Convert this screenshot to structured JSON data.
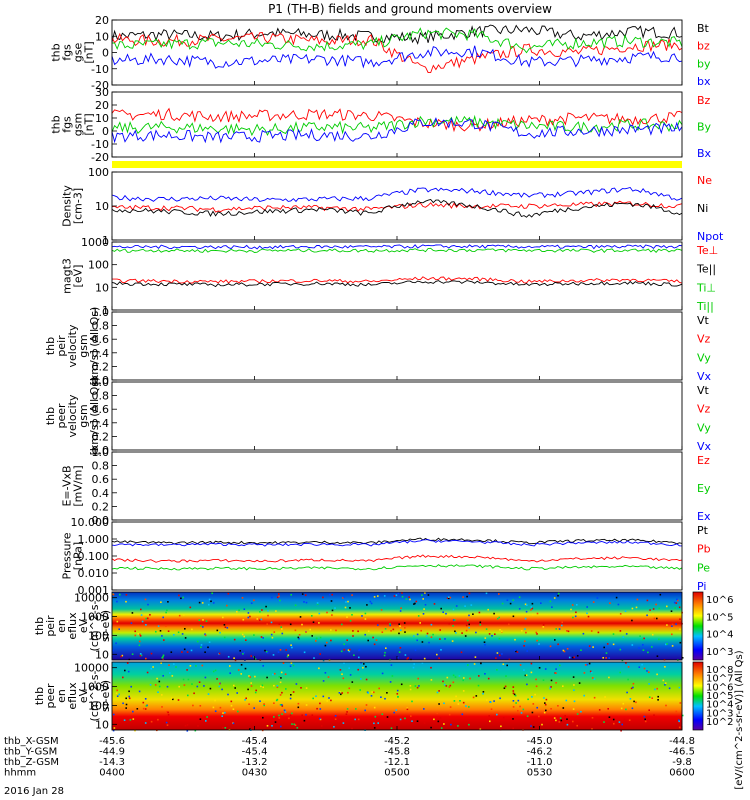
{
  "title": "P1 (TH-B) fields and ground moments overview",
  "date_label": "2016 Jan 28",
  "ephemeris": {
    "labels": [
      "thb_X-GSM",
      "thb_Y-GSM",
      "thb_Z-GSM",
      "hhmm"
    ],
    "rows": [
      [
        "-45.6",
        "-45.4",
        "-45.2",
        "-45.0",
        "-44.8"
      ],
      [
        "-44.9",
        "-45.4",
        "-45.8",
        "-46.2",
        "-46.5"
      ],
      [
        "-14.3",
        "-13.2",
        "-12.1",
        "-11.0",
        "-9.8"
      ],
      [
        "0400",
        "0430",
        "0500",
        "0530",
        "0600"
      ]
    ]
  },
  "colorbar_label": "[eV/(cm^2-s-sr-eV)] (All Qs)",
  "colors": {
    "black": "#000000",
    "red": "#ff0000",
    "green": "#00cc00",
    "blue": "#0000ff",
    "flag": "#ffff00"
  },
  "chart_data": [
    {
      "type": "line",
      "ylabel": [
        "thb",
        "fgs",
        "gse",
        "[nT]"
      ],
      "ylim": [
        -20,
        20
      ],
      "yticks": [
        "20",
        "10",
        "0",
        "-10",
        "-20"
      ],
      "legend": [
        {
          "text": "Bt",
          "color": "#000000"
        },
        {
          "text": "bz",
          "color": "#ff0000"
        },
        {
          "text": "by",
          "color": "#00cc00"
        },
        {
          "text": "bx",
          "color": "#0000ff"
        }
      ],
      "series": [
        {
          "color": "#000000",
          "values": [
            10,
            11,
            10,
            12,
            11,
            10,
            9,
            13,
            14,
            10,
            13,
            12
          ]
        },
        {
          "color": "#ff0000",
          "values": [
            8,
            7,
            8,
            9,
            7,
            8,
            -10,
            -4,
            2,
            0,
            4,
            5
          ]
        },
        {
          "color": "#00cc00",
          "values": [
            4,
            5,
            6,
            5,
            4,
            5,
            12,
            11,
            3,
            6,
            7,
            6
          ]
        },
        {
          "color": "#0000ff",
          "values": [
            -5,
            -4,
            -6,
            -5,
            -4,
            -6,
            0,
            1,
            -6,
            -5,
            -3,
            -2
          ]
        }
      ]
    },
    {
      "type": "line",
      "ylabel": [
        "thb",
        "fgs",
        "gsm",
        "[nT]"
      ],
      "ylim": [
        -20,
        30
      ],
      "yticks": [
        "30",
        "20",
        "10",
        "0",
        "-10",
        "-20"
      ],
      "legend": [
        {
          "text": "Bz",
          "color": "#ff0000"
        },
        {
          "text": "By",
          "color": "#00cc00"
        },
        {
          "text": "Bx",
          "color": "#0000ff"
        }
      ],
      "series": [
        {
          "color": "#ff0000",
          "values": [
            12,
            13,
            11,
            12,
            13,
            12,
            6,
            4,
            8,
            10,
            9,
            11
          ]
        },
        {
          "color": "#00cc00",
          "values": [
            2,
            3,
            2,
            1,
            3,
            2,
            8,
            7,
            4,
            3,
            5,
            4
          ]
        },
        {
          "color": "#0000ff",
          "values": [
            -4,
            -3,
            -5,
            -4,
            -3,
            -4,
            7,
            6,
            -2,
            0,
            1,
            2
          ]
        }
      ]
    },
    {
      "type": "line",
      "ylabel": [
        "Density",
        "[cm-3]"
      ],
      "scale": "log",
      "ylim": [
        1,
        100
      ],
      "yticks": [
        "100",
        "10",
        "1"
      ],
      "legend": [
        {
          "text": "Ne",
          "color": "#ff0000"
        },
        {
          "text": "Ni",
          "color": "#000000"
        },
        {
          "text": "Npot",
          "color": "#0000ff"
        }
      ],
      "series": [
        {
          "color": "#0000ff",
          "values": [
            18,
            16,
            17,
            15,
            16,
            17,
            30,
            28,
            20,
            24,
            32,
            15
          ]
        },
        {
          "color": "#ff0000",
          "values": [
            9,
            9,
            8,
            9,
            9,
            8,
            11,
            10,
            10,
            11,
            12,
            10
          ]
        },
        {
          "color": "#000000",
          "values": [
            8,
            7,
            6,
            7,
            8,
            6,
            14,
            10,
            5,
            9,
            12,
            6
          ]
        }
      ]
    },
    {
      "type": "line",
      "ylabel": [
        "magt3",
        "[eV]"
      ],
      "scale": "log",
      "ylim": [
        1,
        1000
      ],
      "yticks": [
        "1000",
        "100",
        "10",
        "1"
      ],
      "legend": [
        {
          "text": "Te⊥",
          "color": "#ff0000"
        },
        {
          "text": "Te||",
          "color": "#000000"
        },
        {
          "text": "Ti⊥",
          "color": "#00cc00"
        },
        {
          "text": "Ti||",
          "color": "#00cc00"
        }
      ],
      "series": [
        {
          "color": "#0000ff",
          "values": [
            600,
            620,
            610,
            600,
            620,
            610,
            650,
            640,
            620,
            610,
            630,
            620
          ]
        },
        {
          "color": "#00cc00",
          "values": [
            420,
            430,
            410,
            420,
            430,
            420,
            450,
            440,
            430,
            420,
            430,
            420
          ]
        },
        {
          "color": "#ff0000",
          "values": [
            20,
            19,
            18,
            19,
            20,
            18,
            25,
            24,
            18,
            20,
            22,
            18
          ]
        },
        {
          "color": "#000000",
          "values": [
            15,
            14,
            13,
            14,
            15,
            13,
            18,
            17,
            13,
            15,
            16,
            13
          ]
        }
      ]
    },
    {
      "type": "line",
      "ylabel": [
        "thb",
        "peir",
        "velocity",
        "gsm",
        "[km/s] (All Qs)"
      ],
      "ylim": [
        0,
        1
      ],
      "yticks": [
        "1.0",
        "0.8",
        "0.6",
        "0.4",
        "0.2",
        "0.0"
      ],
      "legend": [
        {
          "text": "Vt",
          "color": "#000000"
        },
        {
          "text": "Vz",
          "color": "#ff0000"
        },
        {
          "text": "Vy",
          "color": "#00cc00"
        },
        {
          "text": "Vx",
          "color": "#0000ff"
        }
      ],
      "series": []
    },
    {
      "type": "line",
      "ylabel": [
        "thb",
        "peer",
        "velocity",
        "gsm",
        "[km/s] (All Qs)"
      ],
      "ylim": [
        0,
        1
      ],
      "yticks": [
        "1.0",
        "0.8",
        "0.6",
        "0.4",
        "0.2",
        "0.0"
      ],
      "legend": [
        {
          "text": "Vt",
          "color": "#000000"
        },
        {
          "text": "Vz",
          "color": "#ff0000"
        },
        {
          "text": "Vy",
          "color": "#00cc00"
        },
        {
          "text": "Vx",
          "color": "#0000ff"
        }
      ],
      "series": []
    },
    {
      "type": "line",
      "ylabel": [
        "E=-VxB",
        "[mV/m]"
      ],
      "ylim": [
        0,
        1
      ],
      "yticks": [
        "1.0",
        "0.8",
        "0.6",
        "0.4",
        "0.2",
        "0.0"
      ],
      "legend": [
        {
          "text": "Ez",
          "color": "#ff0000"
        },
        {
          "text": "Ey",
          "color": "#00cc00"
        },
        {
          "text": "Ex",
          "color": "#0000ff"
        }
      ],
      "series": []
    },
    {
      "type": "line",
      "ylabel": [
        "Pressure",
        "[nPa]"
      ],
      "scale": "log",
      "ylim": [
        0.001,
        10
      ],
      "yticks": [
        "10.000",
        "1.000",
        "0.100",
        "0.010",
        "0.001"
      ],
      "legend": [
        {
          "text": "Pt",
          "color": "#000000"
        },
        {
          "text": "Pb",
          "color": "#ff0000"
        },
        {
          "text": "Pe",
          "color": "#00cc00"
        },
        {
          "text": "Pi",
          "color": "#0000ff"
        }
      ],
      "series": [
        {
          "color": "#000000",
          "values": [
            0.7,
            0.6,
            0.65,
            0.6,
            0.65,
            0.6,
            1.0,
            0.9,
            0.6,
            0.8,
            0.85,
            0.6
          ]
        },
        {
          "color": "#0000ff",
          "values": [
            0.5,
            0.45,
            0.5,
            0.45,
            0.5,
            0.45,
            0.8,
            0.7,
            0.45,
            0.6,
            0.65,
            0.45
          ]
        },
        {
          "color": "#ff0000",
          "values": [
            0.06,
            0.05,
            0.055,
            0.05,
            0.06,
            0.05,
            0.1,
            0.09,
            0.05,
            0.07,
            0.08,
            0.05
          ]
        },
        {
          "color": "#00cc00",
          "values": [
            0.02,
            0.018,
            0.019,
            0.018,
            0.02,
            0.018,
            0.028,
            0.026,
            0.018,
            0.022,
            0.024,
            0.018
          ]
        }
      ]
    },
    {
      "type": "heatmap",
      "ylabel": [
        "thb",
        "peir",
        "en",
        "eflux",
        "eV",
        "(cm^2-s-",
        "sr-eV)"
      ],
      "scale": "log",
      "ylim": [
        5,
        20000
      ],
      "yticks": [
        "10000",
        "1000",
        "100",
        "10"
      ],
      "colorbar_ticks": [
        "10^6",
        "10^5",
        "10^4",
        "10^3"
      ]
    },
    {
      "type": "heatmap",
      "ylabel": [
        "thb",
        "peer",
        "en",
        "eflux",
        "eV",
        "(cm^2-s-",
        "sr-eV)"
      ],
      "scale": "log",
      "ylim": [
        5,
        20000
      ],
      "yticks": [
        "10000",
        "1000",
        "100",
        "10"
      ],
      "colorbar_ticks": [
        "10^8",
        "10^7",
        "10^6",
        "10^5",
        "10^4",
        "10^3",
        "10^2"
      ]
    }
  ]
}
